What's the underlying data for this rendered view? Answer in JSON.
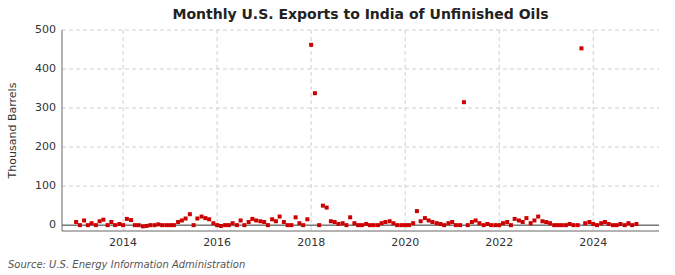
{
  "chart_data": {
    "type": "scatter",
    "title": "Monthly U.S. Exports to India of Unfinished Oils",
    "ylabel": "Thousand Barrels",
    "source": "Source: U.S. Energy Information Administration",
    "color": "#cc0000",
    "marker": "square",
    "grid": true,
    "xlim": [
      2012.7,
      2025.4
    ],
    "xticks": [
      2014,
      2016,
      2018,
      2020,
      2022,
      2024
    ],
    "ylim": [
      -15,
      500
    ],
    "yticks": [
      0,
      100,
      200,
      300,
      400,
      500
    ],
    "x": [
      2013.0,
      2013.08,
      2013.17,
      2013.25,
      2013.33,
      2013.42,
      2013.5,
      2013.58,
      2013.67,
      2013.75,
      2013.83,
      2013.92,
      2014.0,
      2014.08,
      2014.17,
      2014.25,
      2014.33,
      2014.42,
      2014.5,
      2014.58,
      2014.67,
      2014.75,
      2014.83,
      2014.92,
      2015.0,
      2015.08,
      2015.17,
      2015.25,
      2015.33,
      2015.42,
      2015.5,
      2015.58,
      2015.67,
      2015.75,
      2015.83,
      2015.92,
      2016.0,
      2016.08,
      2016.17,
      2016.25,
      2016.33,
      2016.42,
      2016.5,
      2016.58,
      2016.67,
      2016.75,
      2016.83,
      2016.92,
      2017.0,
      2017.08,
      2017.17,
      2017.25,
      2017.33,
      2017.42,
      2017.5,
      2017.58,
      2017.67,
      2017.75,
      2017.83,
      2017.92,
      2018.0,
      2018.08,
      2018.17,
      2018.25,
      2018.33,
      2018.42,
      2018.5,
      2018.58,
      2018.67,
      2018.75,
      2018.83,
      2018.92,
      2019.0,
      2019.08,
      2019.17,
      2019.25,
      2019.33,
      2019.42,
      2019.5,
      2019.58,
      2019.67,
      2019.75,
      2019.83,
      2019.92,
      2020.0,
      2020.08,
      2020.17,
      2020.25,
      2020.33,
      2020.42,
      2020.5,
      2020.58,
      2020.67,
      2020.75,
      2020.83,
      2020.92,
      2021.0,
      2021.08,
      2021.17,
      2021.25,
      2021.33,
      2021.42,
      2021.5,
      2021.58,
      2021.67,
      2021.75,
      2021.83,
      2021.92,
      2022.0,
      2022.08,
      2022.17,
      2022.25,
      2022.33,
      2022.42,
      2022.5,
      2022.58,
      2022.67,
      2022.75,
      2022.83,
      2022.92,
      2023.0,
      2023.08,
      2023.17,
      2023.25,
      2023.33,
      2023.42,
      2023.5,
      2023.58,
      2023.67,
      2023.75,
      2023.83,
      2023.92,
      2024.0,
      2024.08,
      2024.17,
      2024.25,
      2024.33,
      2024.42,
      2024.5,
      2024.58,
      2024.67,
      2024.75,
      2024.83,
      2024.92
    ],
    "values": [
      8,
      0,
      12,
      0,
      5,
      0,
      10,
      14,
      0,
      8,
      0,
      3,
      0,
      16,
      13,
      0,
      0,
      -3,
      -2,
      0,
      0,
      2,
      0,
      0,
      0,
      0,
      8,
      12,
      17,
      28,
      0,
      17,
      22,
      18,
      15,
      5,
      0,
      -2,
      0,
      0,
      5,
      0,
      12,
      0,
      8,
      16,
      12,
      10,
      8,
      0,
      15,
      10,
      22,
      8,
      0,
      0,
      20,
      5,
      0,
      15,
      462,
      338,
      0,
      50,
      45,
      10,
      8,
      3,
      5,
      0,
      20,
      5,
      0,
      0,
      3,
      0,
      0,
      0,
      5,
      8,
      10,
      5,
      0,
      0,
      0,
      0,
      5,
      36,
      10,
      18,
      12,
      8,
      5,
      3,
      0,
      5,
      8,
      0,
      0,
      315,
      0,
      8,
      12,
      5,
      0,
      3,
      0,
      0,
      0,
      5,
      8,
      0,
      16,
      12,
      8,
      18,
      5,
      12,
      22,
      10,
      8,
      5,
      0,
      0,
      0,
      0,
      3,
      0,
      0,
      453,
      5,
      8,
      3,
      0,
      5,
      8,
      3,
      0,
      0,
      3,
      0,
      5,
      0,
      3
    ]
  }
}
